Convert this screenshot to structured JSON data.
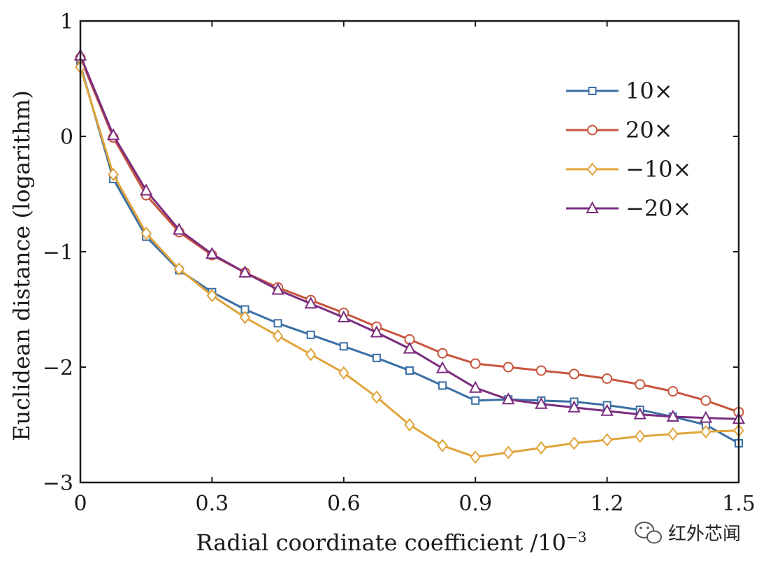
{
  "chart_data": {
    "type": "line",
    "xlabel": "Radial coordinate coefficient /10",
    "xlabel_exponent": "−3",
    "ylabel": "Euclidean distance (logarithm)",
    "xlim": [
      0,
      1.5
    ],
    "ylim": [
      -3,
      1
    ],
    "xticks": [
      0,
      0.3,
      0.6,
      0.9,
      1.2,
      1.5
    ],
    "xtick_labels": [
      "0",
      "0.3",
      "0.6",
      "0.9",
      "1.2",
      "1.5"
    ],
    "yticks": [
      1,
      0,
      -1,
      -2,
      -3
    ],
    "ytick_labels": [
      "1",
      "0",
      "−1",
      "−2",
      "−3"
    ],
    "grid": false,
    "legend_position": "top-right",
    "x": [
      0,
      0.075,
      0.15,
      0.225,
      0.3,
      0.375,
      0.45,
      0.525,
      0.6,
      0.675,
      0.75,
      0.825,
      0.9,
      0.975,
      1.05,
      1.125,
      1.2,
      1.275,
      1.35,
      1.425,
      1.5
    ],
    "series": [
      {
        "name": "10×",
        "color": "#3a6fa5",
        "marker": "square",
        "values": [
          0.62,
          -0.37,
          -0.87,
          -1.16,
          -1.35,
          -1.5,
          -1.62,
          -1.72,
          -1.82,
          -1.92,
          -2.03,
          -2.16,
          -2.29,
          -2.28,
          -2.29,
          -2.3,
          -2.33,
          -2.37,
          -2.43,
          -2.5,
          -2.66
        ]
      },
      {
        "name": "20×",
        "color": "#c8553d",
        "marker": "circle",
        "values": [
          0.68,
          -0.01,
          -0.51,
          -0.83,
          -1.03,
          -1.18,
          -1.31,
          -1.42,
          -1.53,
          -1.65,
          -1.76,
          -1.88,
          -1.97,
          -2.0,
          -2.03,
          -2.06,
          -2.1,
          -2.15,
          -2.21,
          -2.29,
          -2.39
        ]
      },
      {
        "name": "−10×",
        "color": "#e0a43a",
        "marker": "diamond",
        "values": [
          0.6,
          -0.33,
          -0.84,
          -1.15,
          -1.38,
          -1.57,
          -1.73,
          -1.89,
          -2.05,
          -2.26,
          -2.5,
          -2.68,
          -2.78,
          -2.74,
          -2.7,
          -2.66,
          -2.63,
          -2.6,
          -2.58,
          -2.56,
          -2.55
        ]
      },
      {
        "name": "−20×",
        "color": "#7b2d7f",
        "marker": "triangle",
        "values": [
          0.7,
          0.01,
          -0.47,
          -0.81,
          -1.02,
          -1.18,
          -1.33,
          -1.45,
          -1.57,
          -1.7,
          -1.84,
          -2.01,
          -2.18,
          -2.28,
          -2.32,
          -2.35,
          -2.38,
          -2.41,
          -2.43,
          -2.44,
          -2.45
        ]
      }
    ]
  },
  "watermark": {
    "text": "红外芯闻",
    "icon": "wechat-icon"
  }
}
